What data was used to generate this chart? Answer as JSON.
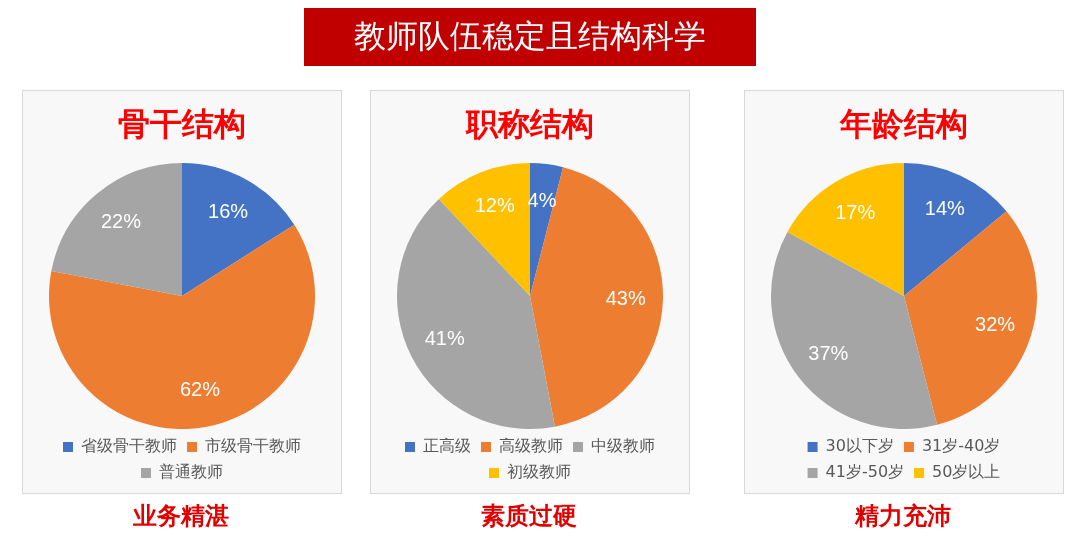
{
  "chart_data": [
    {
      "type": "other",
      "title": "教师队伍稳定且结构科学"
    },
    {
      "type": "pie",
      "title": "骨干结构",
      "categories": [
        "省级骨干教师",
        "市级骨干教师",
        "普通教师"
      ],
      "values": [
        16,
        62,
        22
      ],
      "value_labels": [
        "16%",
        "62%",
        "22%"
      ],
      "colors": [
        "#4472c4",
        "#ed7d31",
        "#a5a5a5"
      ],
      "legend": "bottom",
      "annotations": [
        "业务精湛"
      ]
    },
    {
      "type": "pie",
      "title": "职称结构",
      "categories": [
        "正高级",
        "高级教师",
        "中级教师",
        "初级教师"
      ],
      "values": [
        4,
        43,
        41,
        12
      ],
      "value_labels": [
        "4%",
        "43%",
        "41%",
        "12%"
      ],
      "colors": [
        "#4472c4",
        "#ed7d31",
        "#a5a5a5",
        "#ffc000"
      ],
      "legend": "bottom",
      "annotations": [
        "素质过硬"
      ]
    },
    {
      "type": "pie",
      "title": "年龄结构",
      "categories": [
        "30以下岁",
        "31岁-40岁",
        "41岁-50岁",
        "50岁以上"
      ],
      "values": [
        14,
        32,
        37,
        17
      ],
      "value_labels": [
        "14%",
        "32%",
        "37%",
        "17%"
      ],
      "colors": [
        "#4472c4",
        "#ed7d31",
        "#a5a5a5",
        "#ffc000"
      ],
      "legend": "bottom",
      "annotations": [
        "精力充沛"
      ]
    }
  ]
}
